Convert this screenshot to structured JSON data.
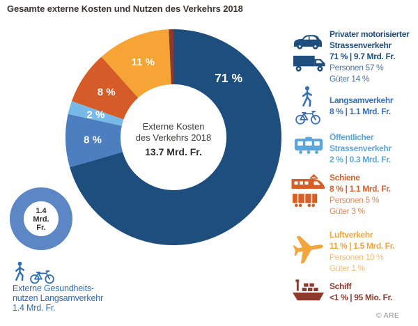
{
  "title": "Gesamte externe Kosten und Nutzen des Verkehrs 2018",
  "source": "© ARE",
  "chart_data": {
    "type": "pie",
    "title": "Externe Kosten des Verkehrs 2018",
    "center_label": [
      "Externe Kosten",
      "des Verkehrs 2018"
    ],
    "center_value": "13.7 Mrd. Fr.",
    "legend_position": "right",
    "slices": [
      {
        "id": "private-road",
        "name": "Privater motorisierter Strassenverkehr",
        "percent": 71,
        "label": "71 %",
        "amount": "9.7 Mrd. Fr.",
        "color": "#1e4e7e",
        "label_angle": 43
      },
      {
        "id": "langsamverkehr",
        "name": "Langsamverkehr",
        "percent": 8,
        "label": "8 %",
        "amount": "1.1 Mrd. Fr.",
        "color": "#4c7ec0"
      },
      {
        "id": "public-road",
        "name": "Öffentlicher Strassenverkehr",
        "percent": 2,
        "label": "2 %",
        "amount": "0.3 Mrd. Fr.",
        "color": "#78bae7"
      },
      {
        "id": "schiene",
        "name": "Schiene",
        "percent": 8,
        "label": "8 %",
        "amount": "1.1 Mrd. Fr.",
        "color": "#d55c28"
      },
      {
        "id": "luftverkehr",
        "name": "Luftverkehr",
        "percent": 11,
        "label": "11 %",
        "amount": "1.5 Mrd. Fr.",
        "color": "#f5a435"
      },
      {
        "id": "schiff",
        "name": "Schiff",
        "percent": 0.7,
        "label": "",
        "amount": "95 Mio. Fr.",
        "color": "#8c392e"
      }
    ],
    "benefit_circle": {
      "value_lines": [
        "1.4",
        "Mrd.",
        "Fr."
      ],
      "ring_color": "#5c86c4",
      "caption_color": "#2e6db6",
      "caption_lines": [
        "Externe Gesundheits-",
        "nutzen Langsamverkehr",
        "1.4 Mrd. Fr."
      ]
    }
  },
  "legend": {
    "entries": [
      {
        "icons": [
          "car-icon",
          "truck-icon"
        ],
        "color": "#1e4e7e",
        "sub_color": "#4a729e",
        "name_lines": [
          "Privater motorisierter",
          "Strassenverkehr"
        ],
        "value": "71 % | 9.7 Mrd. Fr.",
        "sub": [
          "Personen 57 %",
          "Güter 14 %"
        ]
      },
      {
        "icons": [
          "pedestrian-icon",
          "bicycle-icon"
        ],
        "color": "#3a70b4",
        "sub_color": "#3a70b4",
        "name_lines": [
          "Langsamverkehr"
        ],
        "value": "8 % | 1.1 Mrd. Fr.",
        "sub": []
      },
      {
        "icons": [
          "tram-icon"
        ],
        "color": "#58a6db",
        "sub_color": "#58a6db",
        "name_lines": [
          "Öffentlicher",
          "Strassenverkehr"
        ],
        "value": "2 % | 0.3 Mrd. Fr.",
        "sub": []
      },
      {
        "icons": [
          "train-icon",
          "freight-wagon-icon"
        ],
        "color": "#d65f28",
        "sub_color": "#e0875c",
        "name_lines": [
          "Schiene"
        ],
        "value": "8 % | 1.1 Mrd. Fr.",
        "sub": [
          "Personen 5 %",
          "Güter 3 %"
        ]
      },
      {
        "icons": [
          "airplane-icon"
        ],
        "color": "#f2a53c",
        "sub_color": "#f6bd74",
        "name_lines": [
          "Luftverkehr"
        ],
        "value": "11 % | 1.5 Mrd. Fr.",
        "sub": [
          "Personen 10 %",
          "Güter 1 %"
        ]
      },
      {
        "icons": [
          "ship-icon"
        ],
        "color": "#8c392e",
        "sub_color": "#8c392e",
        "name_lines": [
          "Schiff"
        ],
        "value": "<1 % | 95 Mio. Fr.",
        "sub": []
      }
    ]
  }
}
